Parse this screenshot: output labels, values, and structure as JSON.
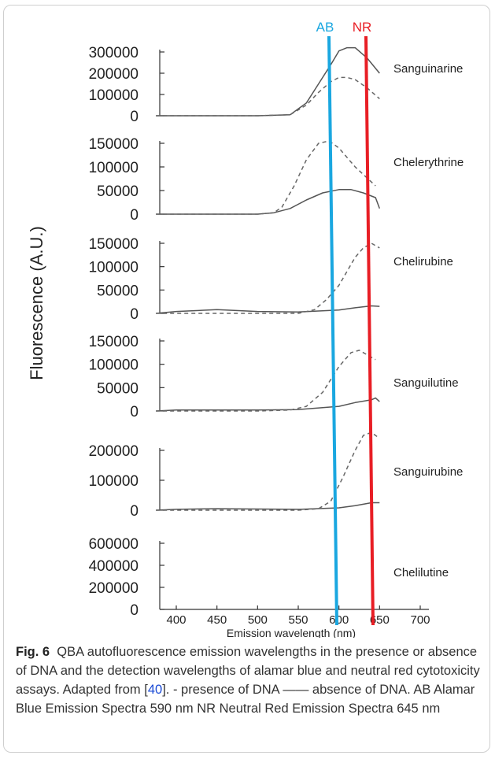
{
  "chart_data": {
    "type": "line",
    "title": "",
    "xlabel": "Emission wavelength (nm)",
    "ylabel": "Fluorescence (A.U.)",
    "xlim": [
      370,
      720
    ],
    "xticks": [
      400,
      450,
      500,
      550,
      600,
      650,
      700
    ],
    "line_styles": {
      "dashed": "presence of DNA",
      "solid": "absence of DNA"
    },
    "markers": [
      {
        "label": "AB",
        "wavelength": 590,
        "color": "#1aa7e0"
      },
      {
        "label": "NR",
        "wavelength": 645,
        "color": "#e81e25"
      }
    ],
    "panels": [
      {
        "name": "Sanguinarine",
        "ylim": [
          0,
          320000
        ],
        "yticks": [
          0,
          100000,
          200000,
          300000
        ],
        "series": [
          {
            "style": "solid",
            "x": [
              375,
              400,
              450,
              500,
              540,
              560,
              575,
              590,
              600,
              610,
              620,
              635,
              650
            ],
            "y": [
              0,
              0,
              0,
              0,
              5000,
              60000,
              150000,
              240000,
              305000,
              320000,
              320000,
              270000,
              200000
            ]
          },
          {
            "style": "dashed",
            "x": [
              375,
              400,
              450,
              500,
              540,
              560,
              575,
              590,
              600,
              610,
              620,
              635,
              650
            ],
            "y": [
              0,
              0,
              0,
              0,
              5000,
              50000,
              110000,
              160000,
              180000,
              180000,
              170000,
              130000,
              80000
            ]
          }
        ]
      },
      {
        "name": "Chelerythrine",
        "ylim": [
          0,
          165000
        ],
        "yticks": [
          0,
          50000,
          100000,
          150000
        ],
        "series": [
          {
            "style": "solid",
            "x": [
              375,
              400,
              450,
              500,
              520,
              540,
              560,
              580,
              600,
              615,
              630,
              645,
              650
            ],
            "y": [
              0,
              0,
              0,
              0,
              3000,
              12000,
              30000,
              45000,
              52000,
              52000,
              45000,
              35000,
              12000
            ]
          },
          {
            "style": "dashed",
            "x": [
              375,
              400,
              450,
              500,
              520,
              530,
              545,
              560,
              575,
              588,
              600,
              620,
              645
            ],
            "y": [
              0,
              0,
              0,
              0,
              3000,
              15000,
              60000,
              115000,
              150000,
              155000,
              140000,
              100000,
              60000
            ]
          }
        ]
      },
      {
        "name": "Chelirubine",
        "ylim": [
          0,
          160000
        ],
        "yticks": [
          0,
          50000,
          100000,
          150000
        ],
        "series": [
          {
            "style": "solid",
            "x": [
              375,
              400,
              450,
              500,
              550,
              600,
              620,
              640,
              650
            ],
            "y": [
              0,
              4000,
              8000,
              4000,
              3000,
              7000,
              12000,
              16000,
              15000
            ]
          },
          {
            "style": "dashed",
            "x": [
              375,
              400,
              450,
              500,
              550,
              570,
              585,
              600,
              610,
              620,
              630,
              640,
              650
            ],
            "y": [
              0,
              0,
              0,
              0,
              0,
              8000,
              30000,
              60000,
              90000,
              120000,
              140000,
              150000,
              140000
            ]
          }
        ]
      },
      {
        "name": "Sanguilutine",
        "ylim": [
          0,
          160000
        ],
        "yticks": [
          0,
          50000,
          100000,
          150000
        ],
        "series": [
          {
            "style": "solid",
            "x": [
              375,
              400,
              450,
              500,
              550,
              600,
              620,
              640,
              645,
              650
            ],
            "y": [
              0,
              2000,
              2000,
              2000,
              3000,
              10000,
              18000,
              24000,
              28000,
              20000
            ]
          },
          {
            "style": "dashed",
            "x": [
              375,
              400,
              450,
              500,
              540,
              560,
              580,
              600,
              615,
              625,
              640,
              645
            ],
            "y": [
              0,
              0,
              0,
              0,
              2000,
              10000,
              40000,
              95000,
              125000,
              130000,
              115000,
              110000
            ]
          }
        ]
      },
      {
        "name": "Sanguirubine",
        "ylim": [
          0,
          280000
        ],
        "yticks": [
          0,
          100000,
          200000
        ],
        "series": [
          {
            "style": "solid",
            "x": [
              375,
              400,
              450,
              500,
              550,
              600,
              620,
              640,
              650
            ],
            "y": [
              0,
              3000,
              5000,
              4000,
              3000,
              8000,
              15000,
              25000,
              25000
            ]
          },
          {
            "style": "dashed",
            "x": [
              375,
              400,
              450,
              500,
              550,
              575,
              590,
              605,
              620,
              630,
              640,
              650
            ],
            "y": [
              0,
              0,
              0,
              0,
              0,
              5000,
              30000,
              110000,
              200000,
              250000,
              260000,
              240000
            ]
          }
        ]
      },
      {
        "name": "Chelilutine",
        "ylim": [
          0,
          650000
        ],
        "yticks": [
          0,
          200000,
          400000,
          600000
        ],
        "series": []
      }
    ]
  },
  "caption": {
    "fig_label": "Fig. 6",
    "text_before_ref": "QBA autofluorescence emission wavelengths in the presence or absence of DNA and the detection wavelengths of alamar blue and neutral red cytotoxicity assays. Adapted from [",
    "ref": "40",
    "text_after_ref": "]. - presence of DNA —— absence of DNA. AB Alamar Blue Emission Spectra 590 nm NR Neutral Red Emission Spectra 645 nm"
  }
}
